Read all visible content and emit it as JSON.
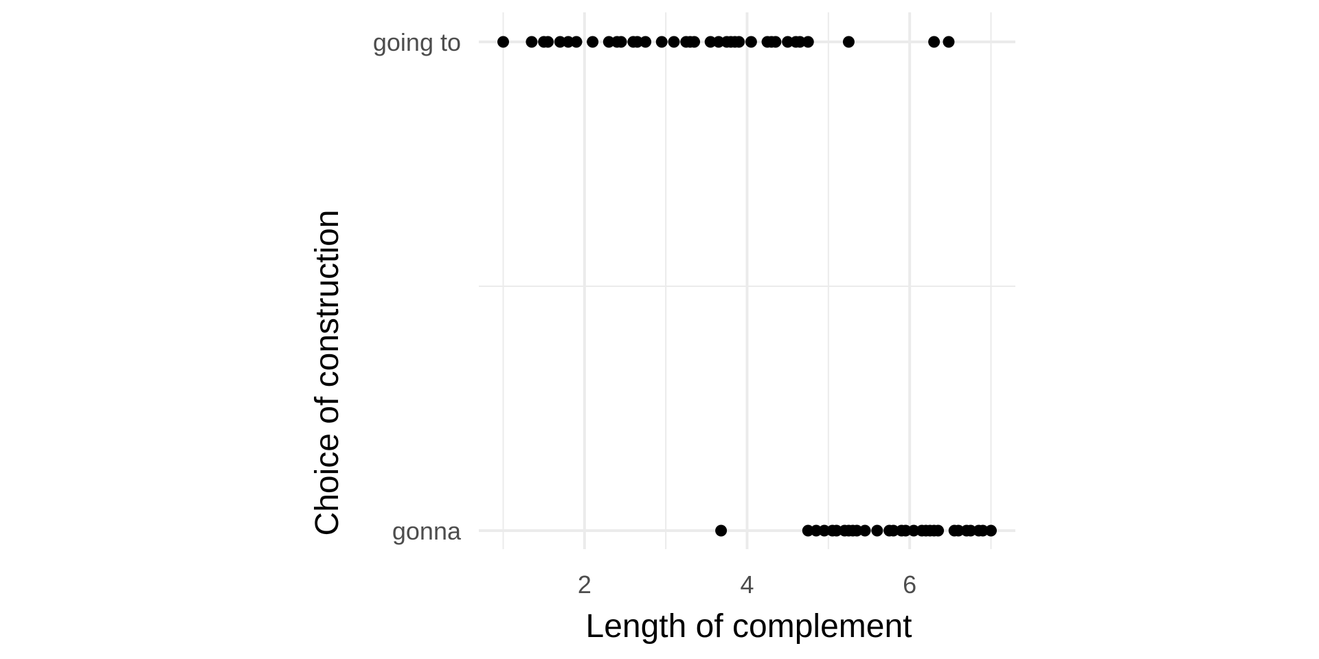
{
  "chart_data": {
    "type": "scatter",
    "title": "",
    "xlabel": "Length of complement",
    "ylabel": "Choice of construction",
    "xlim": [
      0.7,
      7.3
    ],
    "xticks": [
      2,
      4,
      6
    ],
    "x_minor_ticks": [
      1,
      3,
      5,
      7
    ],
    "y_categories": [
      "gonna",
      "going to"
    ],
    "grid": true,
    "legend": "none",
    "point_color": "#000000",
    "grid_color": "#ebebeb",
    "series": [
      {
        "category": "going to",
        "x": [
          1.0,
          1.35,
          1.5,
          1.55,
          1.7,
          1.8,
          1.9,
          2.1,
          2.3,
          2.4,
          2.45,
          2.6,
          2.65,
          2.75,
          2.95,
          3.1,
          3.25,
          3.3,
          3.35,
          3.55,
          3.65,
          3.75,
          3.8,
          3.85,
          3.9,
          4.05,
          4.25,
          4.3,
          4.35,
          4.5,
          4.6,
          4.65,
          4.75,
          5.25,
          6.3,
          6.48
        ]
      },
      {
        "category": "gonna",
        "x": [
          3.68,
          4.75,
          4.85,
          4.95,
          5.05,
          5.1,
          5.2,
          5.25,
          5.3,
          5.35,
          5.45,
          5.6,
          5.75,
          5.8,
          5.9,
          5.95,
          6.05,
          6.15,
          6.2,
          6.25,
          6.3,
          6.35,
          6.55,
          6.6,
          6.7,
          6.75,
          6.85,
          6.9,
          7.0
        ]
      }
    ]
  }
}
